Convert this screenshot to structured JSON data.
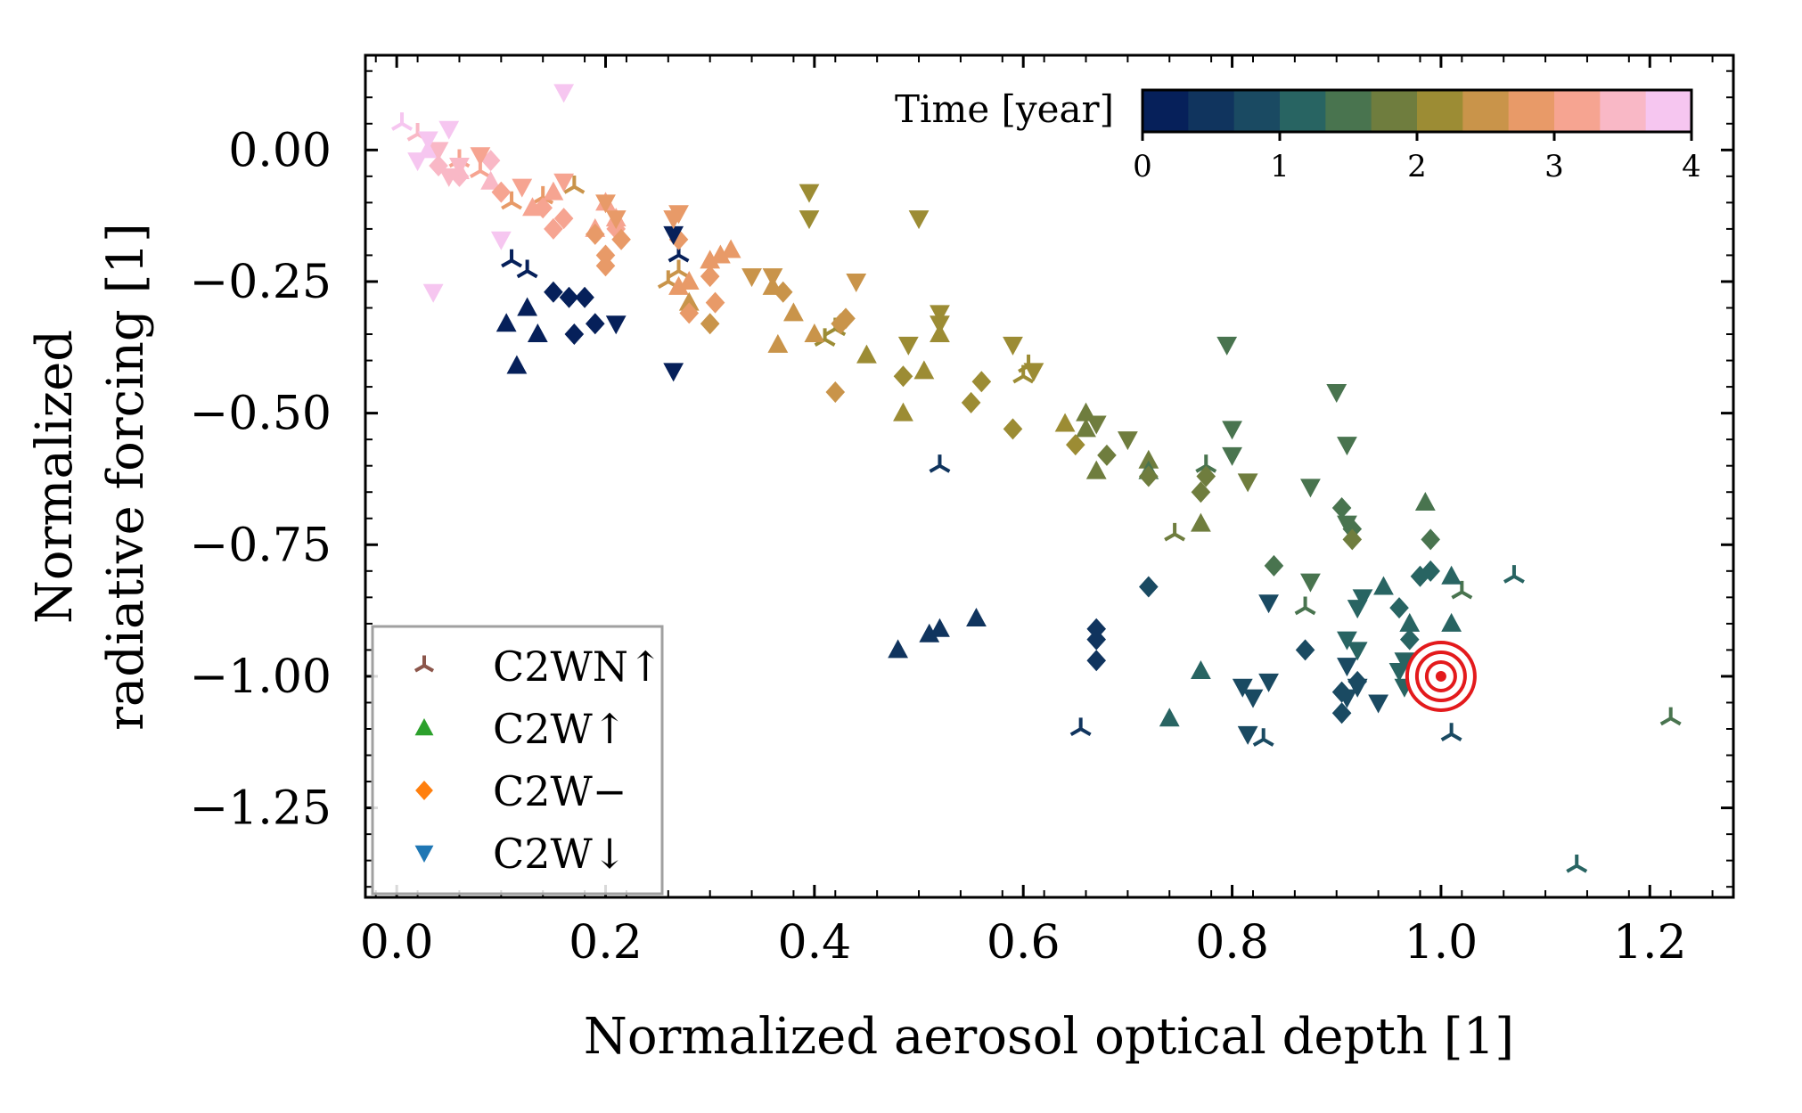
{
  "chart_data": {
    "type": "scatter",
    "xlabel": "Normalized aerosol optical depth [1]",
    "ylabel_lines": [
      "Normalized",
      "radiative forcing [1]"
    ],
    "xlim": [
      -0.03,
      1.28
    ],
    "ylim": [
      -1.42,
      0.18
    ],
    "xticks": [
      0.0,
      0.2,
      0.4,
      0.6,
      0.8,
      1.0,
      1.2
    ],
    "xtick_labels": [
      "0.0",
      "0.2",
      "0.4",
      "0.6",
      "0.8",
      "1.0",
      "1.2"
    ],
    "yticks": [
      0.0,
      -0.25,
      -0.5,
      -0.75,
      -1.0,
      -1.25
    ],
    "ytick_labels": [
      "0.00",
      "−0.25",
      "−0.50",
      "−0.75",
      "−1.00",
      "−1.25"
    ],
    "grid": false,
    "colorbar": {
      "label": "Time [year]",
      "range": [
        0,
        4
      ],
      "ticks": [
        0,
        1,
        2,
        3,
        4
      ],
      "tick_labels": [
        "0",
        "1",
        "2",
        "3",
        "4"
      ],
      "position": "top-right",
      "colors": [
        "#06205a",
        "#10345e",
        "#1a4a62",
        "#286462",
        "#49744f",
        "#6f7d3e",
        "#9c8c34",
        "#c9944a",
        "#e89a68",
        "#f6a491",
        "#f9b8c6",
        "#f6c6f0"
      ]
    },
    "legend": {
      "position": "lower-left",
      "entries": [
        {
          "label": "C2WN↑",
          "marker": "tri-up",
          "color": "#8c564b"
        },
        {
          "label": "C2W↑",
          "marker": "triangle-up",
          "color": "#2ca02c"
        },
        {
          "label": "C2W−",
          "marker": "diamond",
          "color": "#ff7f0e"
        },
        {
          "label": "C2W↓",
          "marker": "triangle-down",
          "color": "#1f77b4"
        }
      ]
    },
    "reference_marker": {
      "x": 1.0,
      "y": -1.0,
      "marker": "concentric-circles",
      "color": "#e31a1c"
    },
    "series": [
      {
        "name": "C2WN↑",
        "marker": "tri-up",
        "points": [
          [
            0.11,
            -0.21,
            0.3
          ],
          [
            0.125,
            -0.23,
            0.3
          ],
          [
            0.27,
            -0.2,
            0.3
          ],
          [
            0.52,
            -0.6,
            0.6
          ],
          [
            0.655,
            -1.1,
            0.6
          ],
          [
            0.83,
            -1.12,
            0.7
          ],
          [
            1.01,
            -1.11,
            0.8
          ],
          [
            1.07,
            -0.81,
            1.3
          ],
          [
            1.02,
            -0.84,
            1.5
          ],
          [
            1.13,
            -1.36,
            1.3
          ],
          [
            1.22,
            -1.08,
            1.4
          ],
          [
            0.87,
            -0.87,
            1.5
          ],
          [
            0.775,
            -0.6,
            1.6
          ],
          [
            0.745,
            -0.73,
            1.9
          ],
          [
            0.6,
            -0.43,
            2.1
          ],
          [
            0.605,
            -0.41,
            2.2
          ],
          [
            0.41,
            -0.36,
            2.2
          ],
          [
            0.42,
            -0.34,
            2.3
          ],
          [
            0.26,
            -0.25,
            2.4
          ],
          [
            0.27,
            -0.23,
            2.6
          ],
          [
            0.11,
            -0.1,
            2.7
          ],
          [
            0.14,
            -0.09,
            2.7
          ],
          [
            0.17,
            -0.07,
            2.5
          ],
          [
            0.08,
            -0.04,
            3.1
          ],
          [
            0.06,
            -0.02,
            3.2
          ],
          [
            0.02,
            0.03,
            3.6
          ],
          [
            0.005,
            0.05,
            3.7
          ]
        ]
      },
      {
        "name": "C2W↑",
        "marker": "triangle-up",
        "points": [
          [
            0.105,
            -0.33,
            0.1
          ],
          [
            0.125,
            -0.3,
            0.1
          ],
          [
            0.135,
            -0.35,
            0.1
          ],
          [
            0.115,
            -0.41,
            0.1
          ],
          [
            0.48,
            -0.95,
            0.5
          ],
          [
            0.51,
            -0.92,
            0.5
          ],
          [
            0.52,
            -0.91,
            0.5
          ],
          [
            0.555,
            -0.89,
            0.5
          ],
          [
            0.74,
            -1.08,
            1.1
          ],
          [
            0.77,
            -0.99,
            1.1
          ],
          [
            0.97,
            -0.9,
            1.1
          ],
          [
            0.945,
            -0.83,
            1.2
          ],
          [
            1.01,
            -0.9,
            1.3
          ],
          [
            1.01,
            -0.81,
            1.3
          ],
          [
            0.985,
            -0.67,
            1.6
          ],
          [
            0.72,
            -0.59,
            1.7
          ],
          [
            0.72,
            -0.61,
            1.6
          ],
          [
            0.77,
            -0.71,
            1.7
          ],
          [
            0.67,
            -0.61,
            1.8
          ],
          [
            0.66,
            -0.53,
            1.9
          ],
          [
            0.64,
            -0.52,
            2.0
          ],
          [
            0.66,
            -0.5,
            1.9
          ],
          [
            0.52,
            -0.35,
            2.1
          ],
          [
            0.485,
            -0.5,
            2.1
          ],
          [
            0.505,
            -0.42,
            2.2
          ],
          [
            0.45,
            -0.39,
            2.3
          ],
          [
            0.4,
            -0.35,
            2.4
          ],
          [
            0.365,
            -0.37,
            2.5
          ],
          [
            0.38,
            -0.31,
            2.5
          ],
          [
            0.36,
            -0.26,
            2.6
          ],
          [
            0.3,
            -0.21,
            2.7
          ],
          [
            0.31,
            -0.2,
            2.8
          ],
          [
            0.32,
            -0.19,
            2.8
          ],
          [
            0.27,
            -0.26,
            2.7
          ],
          [
            0.28,
            -0.25,
            2.8
          ],
          [
            0.28,
            -0.29,
            2.6
          ],
          [
            0.19,
            -0.15,
            3.0
          ],
          [
            0.21,
            -0.13,
            3.0
          ],
          [
            0.2,
            -0.1,
            3.1
          ],
          [
            0.15,
            -0.08,
            3.1
          ],
          [
            0.13,
            -0.11,
            3.0
          ],
          [
            0.09,
            -0.06,
            3.4
          ],
          [
            0.06,
            -0.04,
            3.5
          ],
          [
            0.03,
            0.0,
            3.7
          ]
        ]
      },
      {
        "name": "C2W−",
        "marker": "diamond",
        "points": [
          [
            0.15,
            -0.27,
            0.1
          ],
          [
            0.165,
            -0.28,
            0.1
          ],
          [
            0.18,
            -0.28,
            0.1
          ],
          [
            0.17,
            -0.35,
            0.1
          ],
          [
            0.19,
            -0.33,
            0.1
          ],
          [
            0.72,
            -0.83,
            0.7
          ],
          [
            0.67,
            -0.91,
            0.6
          ],
          [
            0.67,
            -0.93,
            0.6
          ],
          [
            0.67,
            -0.97,
            0.6
          ],
          [
            0.87,
            -0.95,
            0.9
          ],
          [
            0.905,
            -1.03,
            0.9
          ],
          [
            0.905,
            -1.07,
            0.9
          ],
          [
            0.92,
            -1.01,
            0.9
          ],
          [
            0.96,
            -0.87,
            1.1
          ],
          [
            0.97,
            -0.93,
            1.1
          ],
          [
            0.99,
            -0.8,
            1.3
          ],
          [
            0.98,
            -0.81,
            1.3
          ],
          [
            0.99,
            -0.74,
            1.4
          ],
          [
            0.84,
            -0.79,
            1.5
          ],
          [
            0.905,
            -0.68,
            1.5
          ],
          [
            0.915,
            -0.72,
            1.6
          ],
          [
            0.915,
            -0.74,
            1.7
          ],
          [
            0.77,
            -0.65,
            1.8
          ],
          [
            0.775,
            -0.62,
            1.8
          ],
          [
            0.68,
            -0.58,
            1.8
          ],
          [
            0.72,
            -0.62,
            1.8
          ],
          [
            0.65,
            -0.56,
            2.0
          ],
          [
            0.59,
            -0.53,
            2.1
          ],
          [
            0.55,
            -0.48,
            2.1
          ],
          [
            0.56,
            -0.44,
            2.2
          ],
          [
            0.485,
            -0.43,
            2.3
          ],
          [
            0.42,
            -0.46,
            2.4
          ],
          [
            0.425,
            -0.33,
            2.4
          ],
          [
            0.43,
            -0.32,
            2.4
          ],
          [
            0.37,
            -0.27,
            2.5
          ],
          [
            0.3,
            -0.24,
            2.7
          ],
          [
            0.305,
            -0.29,
            2.7
          ],
          [
            0.3,
            -0.33,
            2.6
          ],
          [
            0.28,
            -0.31,
            2.8
          ],
          [
            0.27,
            -0.17,
            2.8
          ],
          [
            0.21,
            -0.15,
            3.0
          ],
          [
            0.2,
            -0.2,
            2.9
          ],
          [
            0.2,
            -0.22,
            2.9
          ],
          [
            0.215,
            -0.17,
            2.9
          ],
          [
            0.19,
            -0.16,
            2.9
          ],
          [
            0.15,
            -0.15,
            3.0
          ],
          [
            0.16,
            -0.13,
            3.0
          ],
          [
            0.14,
            -0.11,
            3.0
          ],
          [
            0.1,
            -0.08,
            3.2
          ],
          [
            0.09,
            -0.02,
            3.4
          ],
          [
            0.06,
            -0.05,
            3.4
          ],
          [
            0.04,
            -0.03,
            3.6
          ]
        ]
      },
      {
        "name": "C2W↓",
        "marker": "triangle-down",
        "points": [
          [
            0.21,
            -0.33,
            0.1
          ],
          [
            0.265,
            -0.42,
            0.1
          ],
          [
            0.265,
            -0.16,
            0.1
          ],
          [
            0.835,
            -0.86,
            0.7
          ],
          [
            0.81,
            -1.02,
            0.8
          ],
          [
            0.82,
            -1.04,
            0.8
          ],
          [
            0.835,
            -1.01,
            0.8
          ],
          [
            0.815,
            -1.11,
            0.8
          ],
          [
            0.91,
            -1.04,
            0.9
          ],
          [
            0.92,
            -1.02,
            0.9
          ],
          [
            0.94,
            -1.05,
            0.9
          ],
          [
            0.91,
            -0.98,
            0.9
          ],
          [
            0.91,
            -0.93,
            1.1
          ],
          [
            0.92,
            -0.95,
            1.1
          ],
          [
            0.925,
            -0.85,
            1.1
          ],
          [
            0.92,
            -0.87,
            1.1
          ],
          [
            0.965,
            -0.97,
            1.2
          ],
          [
            0.96,
            -0.99,
            1.2
          ],
          [
            0.965,
            -1.02,
            1.2
          ],
          [
            0.9,
            -0.46,
            1.4
          ],
          [
            0.91,
            -0.56,
            1.4
          ],
          [
            0.91,
            -0.71,
            1.5
          ],
          [
            0.875,
            -0.64,
            1.5
          ],
          [
            0.875,
            -0.82,
            1.6
          ],
          [
            0.795,
            -0.37,
            1.5
          ],
          [
            0.8,
            -0.53,
            1.6
          ],
          [
            0.8,
            -0.58,
            1.6
          ],
          [
            0.815,
            -0.63,
            1.7
          ],
          [
            0.7,
            -0.55,
            1.8
          ],
          [
            0.67,
            -0.52,
            1.9
          ],
          [
            0.59,
            -0.37,
            2.1
          ],
          [
            0.61,
            -0.42,
            2.1
          ],
          [
            0.49,
            -0.37,
            2.2
          ],
          [
            0.52,
            -0.33,
            2.2
          ],
          [
            0.52,
            -0.31,
            2.3
          ],
          [
            0.5,
            -0.13,
            2.0
          ],
          [
            0.395,
            -0.08,
            2.2
          ],
          [
            0.395,
            -0.13,
            2.2
          ],
          [
            0.44,
            -0.25,
            2.4
          ],
          [
            0.36,
            -0.24,
            2.5
          ],
          [
            0.34,
            -0.24,
            2.6
          ],
          [
            0.27,
            -0.12,
            2.7
          ],
          [
            0.265,
            -0.13,
            2.7
          ],
          [
            0.21,
            -0.13,
            2.9
          ],
          [
            0.2,
            -0.1,
            2.9
          ],
          [
            0.16,
            -0.06,
            3.0
          ],
          [
            0.12,
            -0.07,
            3.1
          ],
          [
            0.08,
            -0.01,
            3.3
          ],
          [
            0.06,
            -0.03,
            3.4
          ],
          [
            0.05,
            -0.05,
            3.5
          ],
          [
            0.04,
            0.0,
            3.6
          ],
          [
            0.02,
            -0.02,
            3.7
          ],
          [
            0.03,
            0.02,
            3.8
          ],
          [
            0.05,
            0.04,
            3.8
          ],
          [
            0.16,
            0.11,
            3.9
          ],
          [
            0.035,
            -0.27,
            3.9
          ],
          [
            0.1,
            -0.17,
            3.8
          ]
        ]
      }
    ]
  }
}
